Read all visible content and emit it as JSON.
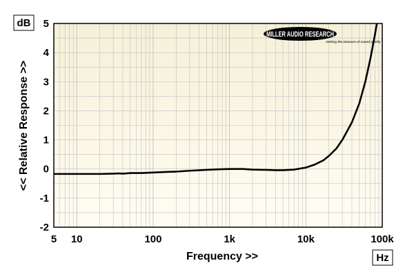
{
  "chart_data": {
    "type": "line",
    "title": "",
    "xlabel": "Frequency >>",
    "ylabel": "<< Relative Response >>",
    "x_unit": "Hz",
    "y_unit": "dB",
    "x_scale": "log",
    "xlim": [
      5,
      100000
    ],
    "ylim": [
      -2,
      5
    ],
    "grid": true,
    "x_ticks": [
      {
        "value": 5,
        "label": "5"
      },
      {
        "value": 10,
        "label": "10"
      },
      {
        "value": 100,
        "label": "100"
      },
      {
        "value": 1000,
        "label": "1k"
      },
      {
        "value": 10000,
        "label": "10k"
      },
      {
        "value": 100000,
        "label": "100k"
      }
    ],
    "y_ticks": [
      {
        "value": 5,
        "label": "5"
      },
      {
        "value": 4,
        "label": "4"
      },
      {
        "value": 3,
        "label": "3"
      },
      {
        "value": 2,
        "label": "2"
      },
      {
        "value": 1,
        "label": "1"
      },
      {
        "value": 0,
        "label": "0"
      },
      {
        "value": -1,
        "label": "-1"
      },
      {
        "value": -2,
        "label": "-2"
      }
    ],
    "series": [
      {
        "color": "#000000",
        "points": [
          [
            5,
            -0.17
          ],
          [
            10,
            -0.17
          ],
          [
            20,
            -0.17
          ],
          [
            30,
            -0.16
          ],
          [
            35,
            -0.15
          ],
          [
            40,
            -0.16
          ],
          [
            50,
            -0.14
          ],
          [
            70,
            -0.14
          ],
          [
            100,
            -0.12
          ],
          [
            150,
            -0.1
          ],
          [
            200,
            -0.09
          ],
          [
            300,
            -0.06
          ],
          [
            500,
            -0.03
          ],
          [
            700,
            -0.01
          ],
          [
            1000,
            0.0
          ],
          [
            1500,
            0.0
          ],
          [
            2000,
            -0.02
          ],
          [
            3000,
            -0.03
          ],
          [
            4000,
            -0.04
          ],
          [
            5000,
            -0.04
          ],
          [
            7000,
            -0.02
          ],
          [
            10000,
            0.05
          ],
          [
            13000,
            0.15
          ],
          [
            17000,
            0.3
          ],
          [
            20000,
            0.45
          ],
          [
            25000,
            0.7
          ],
          [
            30000,
            1.0
          ],
          [
            40000,
            1.6
          ],
          [
            50000,
            2.25
          ],
          [
            60000,
            3.0
          ],
          [
            70000,
            3.8
          ],
          [
            80000,
            4.6
          ],
          [
            85000,
            5.0
          ]
        ]
      }
    ]
  },
  "logo": {
    "name": "MILLER AUDIO RESEARCH",
    "tagline": "Getting the measure of sound quality"
  },
  "colors": {
    "plot_background_top": "#f5f0d8",
    "plot_background_bottom": "#fffdf3",
    "grid": "#c0c0c0",
    "curve": "#000000",
    "logo_fill": "#000000"
  }
}
